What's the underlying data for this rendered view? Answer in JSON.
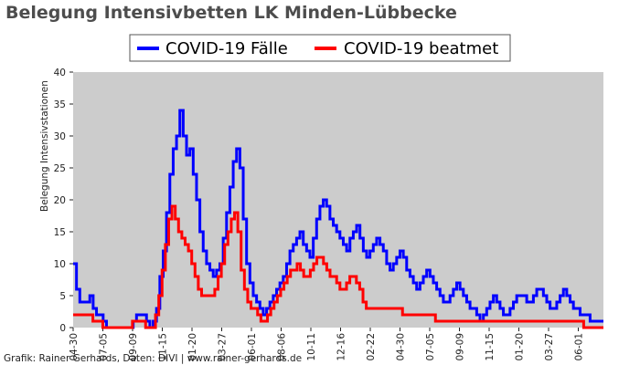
{
  "chart_data": {
    "type": "line",
    "title": "Belegung Intensivbetten LK Minden-Lübbecke",
    "ylabel": "Belegung Intensivstationen",
    "xlabel": "",
    "ylim": [
      0,
      40
    ],
    "yticks": [
      0,
      5,
      10,
      15,
      20,
      25,
      30,
      35,
      40
    ],
    "x_tick_labels": [
      "04-30",
      "07-05",
      "09-09",
      "11-15",
      "01-20",
      "03-27",
      "06-01",
      "08-06",
      "10-11",
      "12-16",
      "02-22",
      "04-30",
      "07-05",
      "09-09",
      "11-15",
      "01-20",
      "03-27",
      "06-01"
    ],
    "grid": false,
    "legend_position": "top",
    "colors": {
      "faelle": "#0000ff",
      "beatmet": "#ff0000",
      "plot_bg": "#cccccc"
    },
    "series": [
      {
        "name": "COVID-19 Fälle",
        "color": "#0000ff",
        "values": [
          10,
          6,
          4,
          4,
          4,
          5,
          3,
          2,
          2,
          1,
          0,
          0,
          0,
          0,
          0,
          0,
          0,
          0,
          1,
          2,
          2,
          2,
          1,
          0,
          1,
          3,
          8,
          12,
          18,
          24,
          28,
          30,
          34,
          30,
          27,
          28,
          24,
          20,
          15,
          12,
          10,
          9,
          8,
          9,
          10,
          14,
          18,
          22,
          26,
          28,
          25,
          17,
          10,
          7,
          5,
          4,
          3,
          2,
          3,
          4,
          5,
          6,
          7,
          8,
          10,
          12,
          13,
          14,
          15,
          13,
          12,
          11,
          14,
          17,
          19,
          20,
          19,
          17,
          16,
          15,
          14,
          13,
          12,
          14,
          15,
          16,
          14,
          12,
          11,
          12,
          13,
          14,
          13,
          12,
          10,
          9,
          10,
          11,
          12,
          11,
          9,
          8,
          7,
          6,
          7,
          8,
          9,
          8,
          7,
          6,
          5,
          4,
          4,
          5,
          6,
          7,
          6,
          5,
          4,
          3,
          3,
          2,
          1,
          2,
          3,
          4,
          5,
          4,
          3,
          2,
          2,
          3,
          4,
          5,
          5,
          5,
          4,
          4,
          5,
          6,
          6,
          5,
          4,
          3,
          3,
          4,
          5,
          6,
          5,
          4,
          3,
          3,
          2,
          2,
          2,
          1,
          1,
          1,
          1
        ]
      },
      {
        "name": "COVID-19 beatmet",
        "color": "#ff0000",
        "values": [
          2,
          2,
          2,
          2,
          2,
          2,
          1,
          1,
          1,
          0,
          0,
          0,
          0,
          0,
          0,
          0,
          0,
          0,
          1,
          1,
          1,
          1,
          0,
          0,
          0,
          2,
          5,
          9,
          13,
          17,
          19,
          17,
          15,
          14,
          13,
          12,
          10,
          8,
          6,
          5,
          5,
          5,
          5,
          6,
          8,
          10,
          13,
          15,
          17,
          18,
          15,
          9,
          6,
          4,
          3,
          3,
          2,
          1,
          1,
          2,
          3,
          4,
          5,
          6,
          7,
          8,
          9,
          9,
          10,
          9,
          8,
          8,
          9,
          10,
          11,
          11,
          10,
          9,
          8,
          8,
          7,
          6,
          6,
          7,
          8,
          8,
          7,
          6,
          4,
          3,
          3,
          3,
          3,
          3,
          3,
          3,
          3,
          3,
          3,
          3,
          2,
          2,
          2,
          2,
          2,
          2,
          2,
          2,
          2,
          2,
          1,
          1,
          1,
          1,
          1,
          1,
          1,
          1,
          1,
          1,
          1,
          1,
          1,
          1,
          1,
          1,
          1,
          1,
          1,
          1,
          1,
          1,
          1,
          1,
          1,
          1,
          1,
          1,
          1,
          1,
          1,
          1,
          1,
          1,
          1,
          1,
          1,
          1,
          1,
          1,
          1,
          1,
          1,
          1,
          1,
          0,
          0,
          0,
          0,
          0,
          0
        ]
      }
    ]
  },
  "credit": "Grafik: Rainer Gerhards, Daten: DIVI | www.rainer-gerhards.de"
}
